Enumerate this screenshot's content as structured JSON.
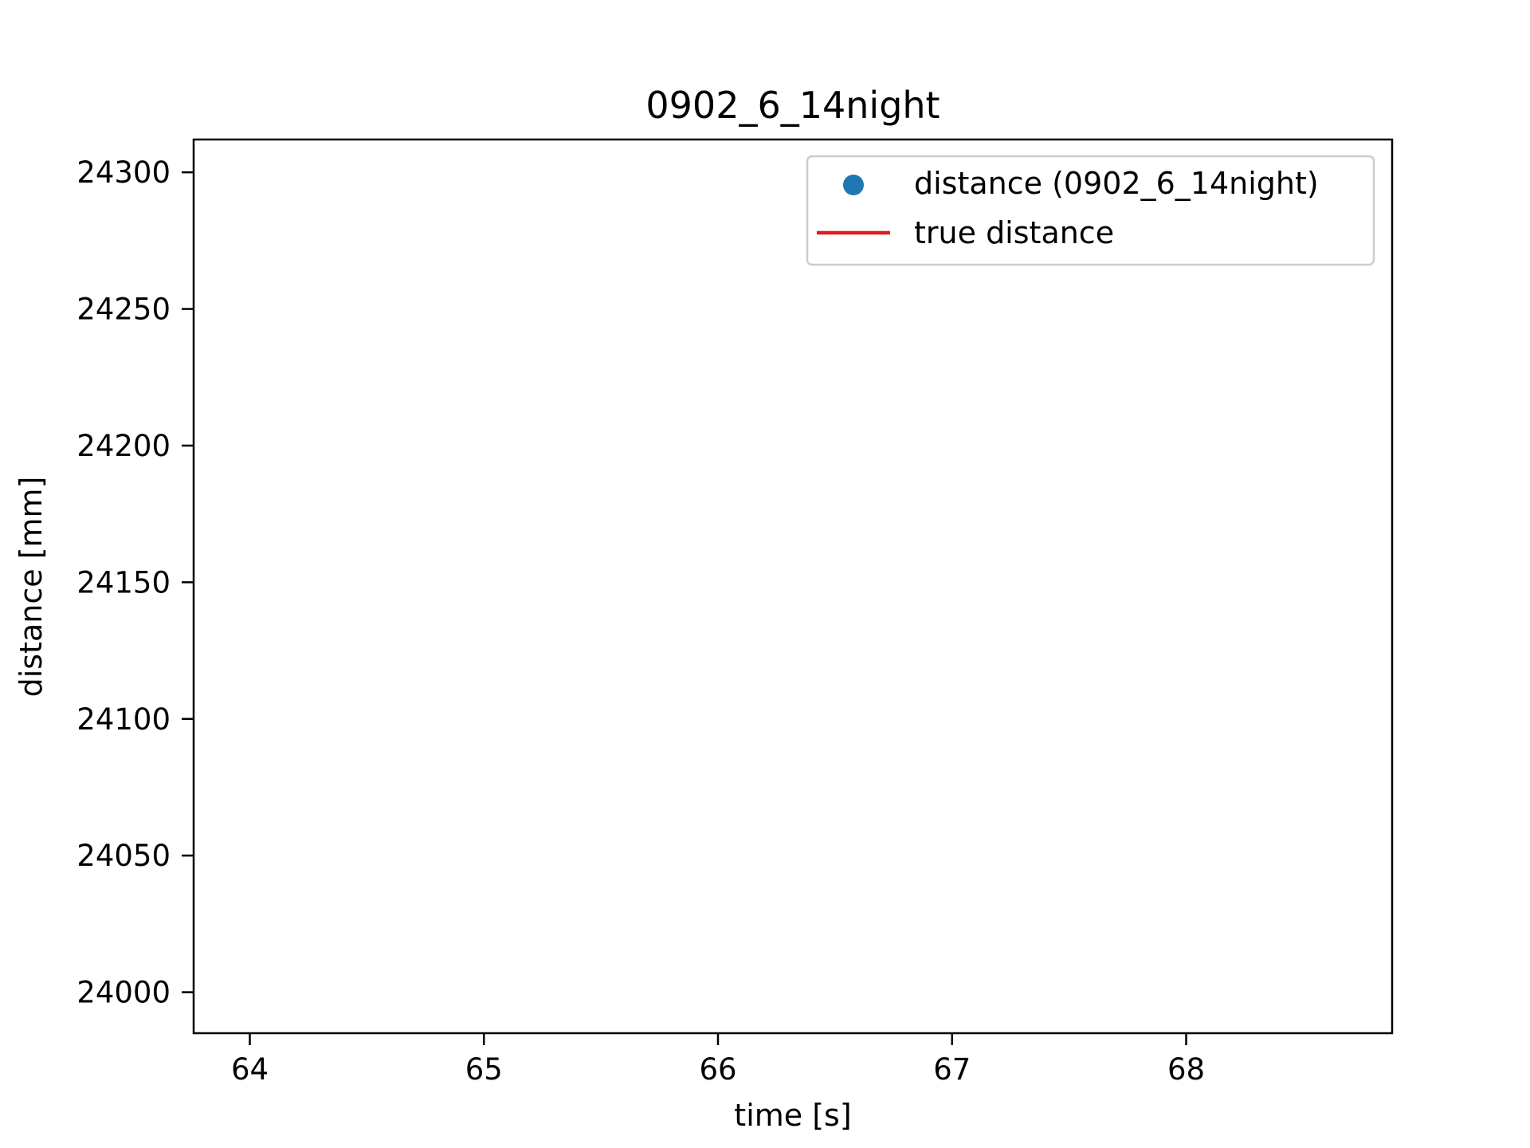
{
  "chart_data": {
    "type": "scatter",
    "title": "0902_6_14night",
    "xlabel": "time [s]",
    "ylabel": "distance [mm]",
    "xlim": [
      63.76,
      68.88
    ],
    "ylim": [
      23985,
      24312
    ],
    "xticks": [
      64,
      65,
      66,
      67,
      68
    ],
    "yticks": [
      24000,
      24050,
      24100,
      24150,
      24200,
      24250,
      24300
    ],
    "grid": false,
    "legend_position": "top-right",
    "series": [
      {
        "name": "distance (0902_6_14night)",
        "kind": "scatter",
        "color": "#1f77b4",
        "x": [],
        "y": []
      },
      {
        "name": "true distance",
        "kind": "line",
        "color": "#e31a1c",
        "x": [],
        "y": []
      }
    ]
  }
}
